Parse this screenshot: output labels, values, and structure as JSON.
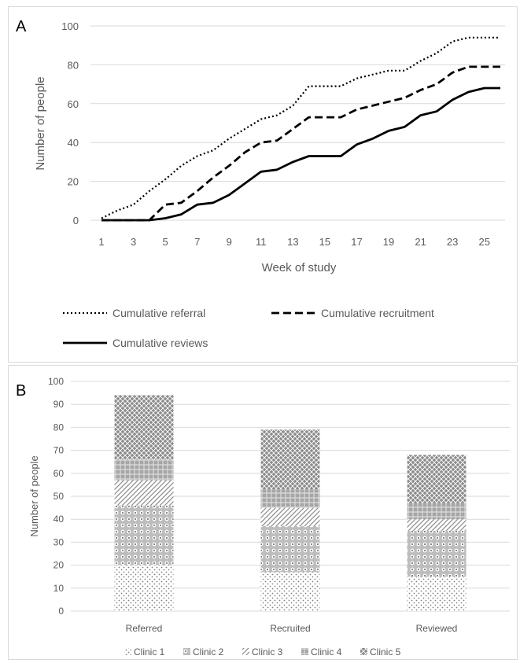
{
  "chart_data": [
    {
      "type": "line",
      "panel_label": "A",
      "xlabel": "Week of study",
      "ylabel": "Number of people",
      "ylim": [
        0,
        100
      ],
      "yticks": [
        0,
        20,
        40,
        60,
        80,
        100
      ],
      "xticks": [
        1,
        3,
        5,
        7,
        9,
        11,
        13,
        15,
        17,
        19,
        21,
        23,
        25
      ],
      "x": [
        1,
        2,
        3,
        4,
        5,
        6,
        7,
        8,
        9,
        10,
        11,
        12,
        13,
        14,
        15,
        16,
        17,
        18,
        19,
        20,
        21,
        22,
        23,
        24,
        25,
        26
      ],
      "grid": true,
      "legend_position": "bottom",
      "series": [
        {
          "name": "Cumulative referral",
          "style": "dotted",
          "values": [
            1,
            5,
            8,
            15,
            21,
            28,
            33,
            36,
            42,
            47,
            52,
            54,
            59,
            69,
            69,
            69,
            73,
            75,
            77,
            77,
            82,
            86,
            92,
            94,
            94,
            94
          ]
        },
        {
          "name": "Cumulative recruitment",
          "style": "dashed",
          "values": [
            0,
            0,
            0,
            0,
            8,
            9,
            15,
            22,
            28,
            35,
            40,
            41,
            47,
            53,
            53,
            53,
            57,
            59,
            61,
            63,
            67,
            70,
            76,
            79,
            79,
            79
          ]
        },
        {
          "name": "Cumulative reviews",
          "style": "solid",
          "values": [
            0,
            0,
            0,
            0,
            1,
            3,
            8,
            9,
            13,
            19,
            25,
            26,
            30,
            33,
            33,
            33,
            39,
            42,
            46,
            48,
            54,
            56,
            62,
            66,
            68,
            68
          ]
        }
      ]
    },
    {
      "type": "bar",
      "stacked": true,
      "panel_label": "B",
      "xlabel": "",
      "ylabel": "Number of people",
      "ylim": [
        0,
        100
      ],
      "yticks": [
        0,
        10,
        20,
        30,
        40,
        50,
        60,
        70,
        80,
        90,
        100
      ],
      "categories": [
        "Referred",
        "Recruited",
        "Reviewed"
      ],
      "grid": true,
      "legend_position": "bottom",
      "series": [
        {
          "name": "Clinic 1",
          "values": [
            20,
            17,
            15
          ]
        },
        {
          "name": "Clinic 2",
          "values": [
            26,
            20,
            20
          ]
        },
        {
          "name": "Clinic 3",
          "values": [
            11,
            8,
            5
          ]
        },
        {
          "name": "Clinic 4",
          "values": [
            9,
            8,
            7
          ]
        },
        {
          "name": "Clinic 5",
          "values": [
            28,
            26,
            21
          ]
        }
      ]
    }
  ]
}
